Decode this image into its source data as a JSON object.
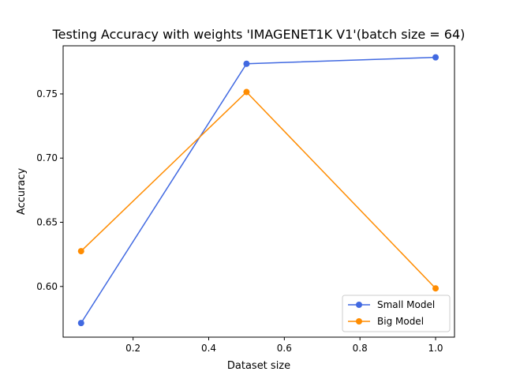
{
  "chart_data": {
    "type": "line",
    "title": "Testing Accuracy with weights 'IMAGENET1K V1'(batch size = 64)",
    "xlabel": "Dataset size",
    "ylabel": "Accuracy",
    "xlim": [
      0.015,
      1.05
    ],
    "ylim": [
      0.5605,
      0.7875
    ],
    "xticks": [
      0.2,
      0.4,
      0.6,
      0.8,
      1.0
    ],
    "xtick_labels": [
      "0.2",
      "0.4",
      "0.6",
      "0.8",
      "1.0"
    ],
    "yticks": [
      0.6,
      0.65,
      0.7,
      0.75
    ],
    "ytick_labels": [
      "0.60",
      "0.65",
      "0.70",
      "0.75"
    ],
    "grid": false,
    "legend_position": "lower-right",
    "series": [
      {
        "name": "Small Model",
        "color": "#4169e1",
        "marker": "circle",
        "x": [
          0.0625,
          0.5,
          1.0
        ],
        "y": [
          0.5715,
          0.7735,
          0.7785
        ]
      },
      {
        "name": "Big Model",
        "color": "#ff8c00",
        "marker": "circle",
        "x": [
          0.0625,
          0.5,
          1.0
        ],
        "y": [
          0.6275,
          0.7515,
          0.5985
        ]
      }
    ]
  }
}
